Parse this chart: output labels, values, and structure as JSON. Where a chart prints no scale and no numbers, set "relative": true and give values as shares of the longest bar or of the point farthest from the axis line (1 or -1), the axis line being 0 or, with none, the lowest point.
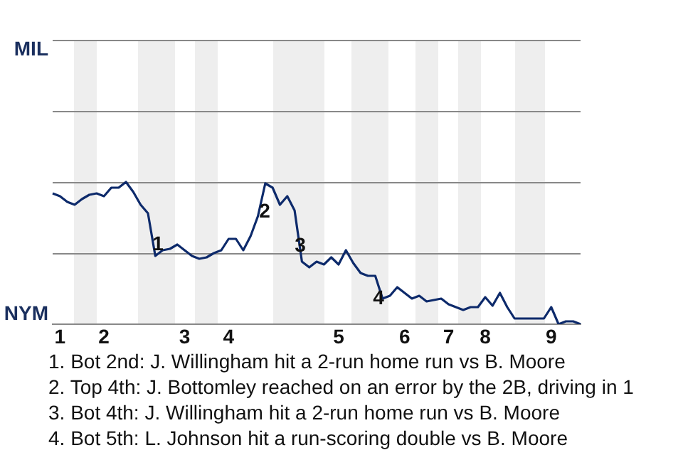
{
  "chart_data": {
    "type": "line",
    "relative": true,
    "categories": [
      null,
      "1",
      null,
      null,
      null,
      null,
      null,
      "2",
      null,
      null,
      null,
      null,
      null,
      null,
      null,
      null,
      null,
      null,
      "3",
      null,
      null,
      null,
      null,
      null,
      "4",
      null,
      null,
      null,
      null,
      null,
      null,
      null,
      null,
      null,
      null,
      null,
      null,
      null,
      null,
      "5",
      null,
      null,
      null,
      null,
      null,
      null,
      null,
      null,
      "6",
      null,
      null,
      null,
      null,
      null,
      "7",
      null,
      null,
      null,
      null,
      "8",
      null,
      null,
      null,
      null,
      null,
      null,
      null,
      null,
      "9",
      null,
      null,
      null,
      null
    ],
    "legend": false,
    "ref_lines": [
      {
        "axis": "y",
        "value": 0.5,
        "color": "#888888"
      },
      {
        "axis": "y",
        "value": 1,
        "color": "#888888"
      },
      {
        "axis": "y",
        "value": 1.5,
        "color": "#888888"
      },
      {
        "axis": "y",
        "value": 2,
        "color": "#888888"
      }
    ],
    "marker": "none",
    "line_style": "solid",
    "series": [
      {
        "color": "#0d2a6b",
        "values": [
          0.92,
          0.9,
          0.86,
          0.84,
          0.88,
          0.91,
          0.92,
          0.9,
          0.96,
          0.96,
          1,
          0.93,
          0.84,
          0.78,
          0.48,
          0.52,
          0.53,
          0.56,
          0.52,
          0.48,
          0.46,
          0.47,
          0.5,
          0.52,
          0.6,
          0.6,
          0.52,
          0.62,
          0.76,
          0.99,
          0.96,
          0.84,
          0.9,
          0.8,
          0.44,
          0.4,
          0.44,
          0.42,
          0.47,
          0.42,
          0.52,
          0.43,
          0.36,
          0.34,
          0.34,
          0.18,
          0.2,
          0.26,
          0.22,
          0.18,
          0.2,
          0.16,
          0.17,
          0.18,
          0.14,
          0.12,
          0.1,
          0.12,
          0.12,
          0.19,
          0.13,
          0.22,
          0.12,
          0.04,
          0.04,
          0.04,
          0.04,
          0.04,
          0.12,
          0,
          0.02,
          0.02,
          0
        ]
      }
    ],
    "annotations": [
      "MIL",
      "NYM",
      "1",
      "2",
      "3",
      "4",
      "1. Bot 2nd: J. Willingham hit a 2-run home run vs B. Moore",
      "2. Top 4th: J. Bottomley reached on an error by the 2B, driving in 1",
      "3. Bot 4th: J. Willingham hit a 2-run home run vs B. Moore",
      "4. Bot 5th: L. Johnson hit a run-scoring double vs B. Moore"
    ]
  }
}
